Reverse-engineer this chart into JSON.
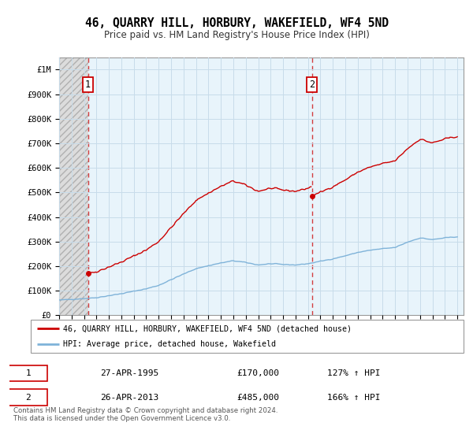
{
  "title": "46, QUARRY HILL, HORBURY, WAKEFIELD, WF4 5ND",
  "subtitle": "Price paid vs. HM Land Registry's House Price Index (HPI)",
  "ylim": [
    0,
    1050000
  ],
  "yticks": [
    0,
    100000,
    200000,
    300000,
    400000,
    500000,
    600000,
    700000,
    800000,
    900000,
    1000000
  ],
  "ytick_labels": [
    "£0",
    "£100K",
    "£200K",
    "£300K",
    "£400K",
    "£500K",
    "£600K",
    "£700K",
    "£800K",
    "£900K",
    "£1M"
  ],
  "sale1_date": 1995.32,
  "sale1_price": 170000,
  "sale2_date": 2013.32,
  "sale2_price": 485000,
  "hpi_line_color": "#7fb3d9",
  "price_line_color": "#cc0000",
  "grid_color": "#c8dcea",
  "plot_bg_color": "#e8f4fb",
  "hatch_bg_color": "#dcdcdc",
  "hatch_edge_color": "#b0b0b0",
  "annotation1_text": "1",
  "annotation2_text": "2",
  "legend_label1": "46, QUARRY HILL, HORBURY, WAKEFIELD, WF4 5ND (detached house)",
  "legend_label2": "HPI: Average price, detached house, Wakefield",
  "table_row1": [
    "1",
    "27-APR-1995",
    "£170,000",
    "127% ↑ HPI"
  ],
  "table_row2": [
    "2",
    "26-APR-2013",
    "£485,000",
    "166% ↑ HPI"
  ],
  "footer": "Contains HM Land Registry data © Crown copyright and database right 2024.\nThis data is licensed under the Open Government Licence v3.0.",
  "xlim_left": 1993.0,
  "xlim_right": 2025.5
}
